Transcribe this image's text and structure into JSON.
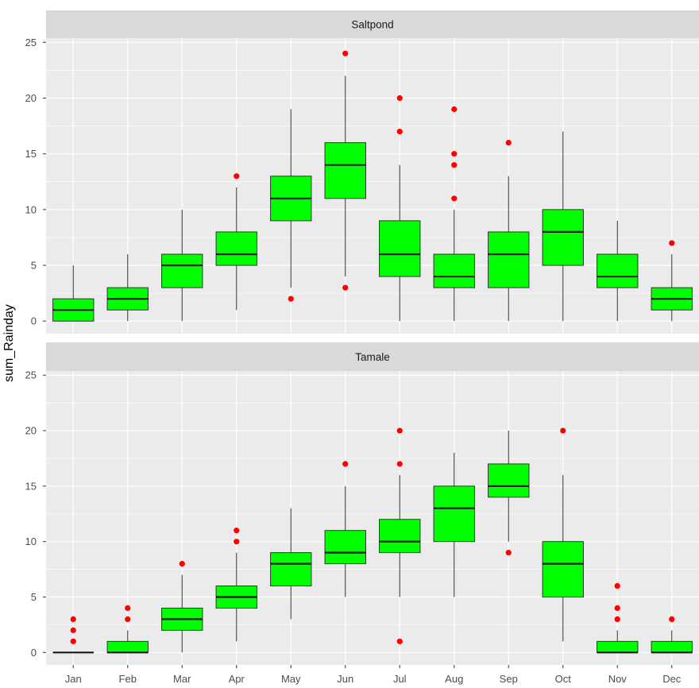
{
  "chart_data": {
    "type": "boxplot",
    "ylabel": "sum_Rainday",
    "xlabel": "",
    "ylim": [
      0,
      25
    ],
    "yticks": [
      0,
      5,
      10,
      15,
      20,
      25
    ],
    "categories": [
      "Jan",
      "Feb",
      "Mar",
      "Apr",
      "May",
      "Jun",
      "Jul",
      "Aug",
      "Sep",
      "Oct",
      "Nov",
      "Dec"
    ],
    "box_fill": "#00ff00",
    "outlier_color": "#ff0000",
    "panel_bg": "#ebebeb",
    "strip_bg": "#d9d9d9",
    "grid_color": "#ffffff",
    "facets": [
      {
        "label": "Saltpond",
        "boxes": [
          {
            "min": 0,
            "q1": 0,
            "median": 1,
            "q3": 2,
            "max": 5,
            "outliers": []
          },
          {
            "min": 0,
            "q1": 1,
            "median": 2,
            "q3": 3,
            "max": 6,
            "outliers": []
          },
          {
            "min": 0,
            "q1": 3,
            "median": 5,
            "q3": 6,
            "max": 10,
            "outliers": []
          },
          {
            "min": 1,
            "q1": 5,
            "median": 6,
            "q3": 8,
            "max": 12,
            "outliers": [
              13
            ]
          },
          {
            "min": 3,
            "q1": 9,
            "median": 11,
            "q3": 13,
            "max": 19,
            "outliers": [
              2
            ]
          },
          {
            "min": 4,
            "q1": 11,
            "median": 14,
            "q3": 16,
            "max": 22,
            "outliers": [
              24,
              3
            ]
          },
          {
            "min": 0,
            "q1": 4,
            "median": 6,
            "q3": 9,
            "max": 14,
            "outliers": [
              20,
              17
            ]
          },
          {
            "min": 0,
            "q1": 3,
            "median": 4,
            "q3": 6,
            "max": 10,
            "outliers": [
              19,
              15,
              14,
              11
            ]
          },
          {
            "min": 0,
            "q1": 3,
            "median": 6,
            "q3": 8,
            "max": 13,
            "outliers": [
              16
            ]
          },
          {
            "min": 0,
            "q1": 5,
            "median": 8,
            "q3": 10,
            "max": 17,
            "outliers": []
          },
          {
            "min": 0,
            "q1": 3,
            "median": 4,
            "q3": 6,
            "max": 9,
            "outliers": []
          },
          {
            "min": 0,
            "q1": 1,
            "median": 2,
            "q3": 3,
            "max": 6,
            "outliers": [
              7
            ]
          }
        ]
      },
      {
        "label": "Tamale",
        "boxes": [
          {
            "min": 0,
            "q1": 0,
            "median": 0,
            "q3": 0,
            "max": 0,
            "outliers": [
              3,
              2,
              1
            ]
          },
          {
            "min": 0,
            "q1": 0,
            "median": 0,
            "q3": 1,
            "max": 2,
            "outliers": [
              4,
              3
            ]
          },
          {
            "min": 0,
            "q1": 2,
            "median": 3,
            "q3": 4,
            "max": 7,
            "outliers": [
              8
            ]
          },
          {
            "min": 1,
            "q1": 4,
            "median": 5,
            "q3": 6,
            "max": 9,
            "outliers": [
              11,
              10
            ]
          },
          {
            "min": 3,
            "q1": 6,
            "median": 8,
            "q3": 9,
            "max": 13,
            "outliers": []
          },
          {
            "min": 5,
            "q1": 8,
            "median": 9,
            "q3": 11,
            "max": 15,
            "outliers": [
              17
            ]
          },
          {
            "min": 5,
            "q1": 9,
            "median": 10,
            "q3": 12,
            "max": 16,
            "outliers": [
              20,
              17,
              1
            ]
          },
          {
            "min": 5,
            "q1": 10,
            "median": 13,
            "q3": 15,
            "max": 18,
            "outliers": []
          },
          {
            "min": 10,
            "q1": 14,
            "median": 15,
            "q3": 17,
            "max": 20,
            "outliers": [
              9
            ]
          },
          {
            "min": 1,
            "q1": 5,
            "median": 8,
            "q3": 10,
            "max": 16,
            "outliers": [
              20
            ]
          },
          {
            "min": 0,
            "q1": 0,
            "median": 0,
            "q3": 1,
            "max": 2,
            "outliers": [
              6,
              4,
              3
            ]
          },
          {
            "min": 0,
            "q1": 0,
            "median": 0,
            "q3": 1,
            "max": 2,
            "outliers": [
              3
            ]
          }
        ]
      }
    ]
  }
}
